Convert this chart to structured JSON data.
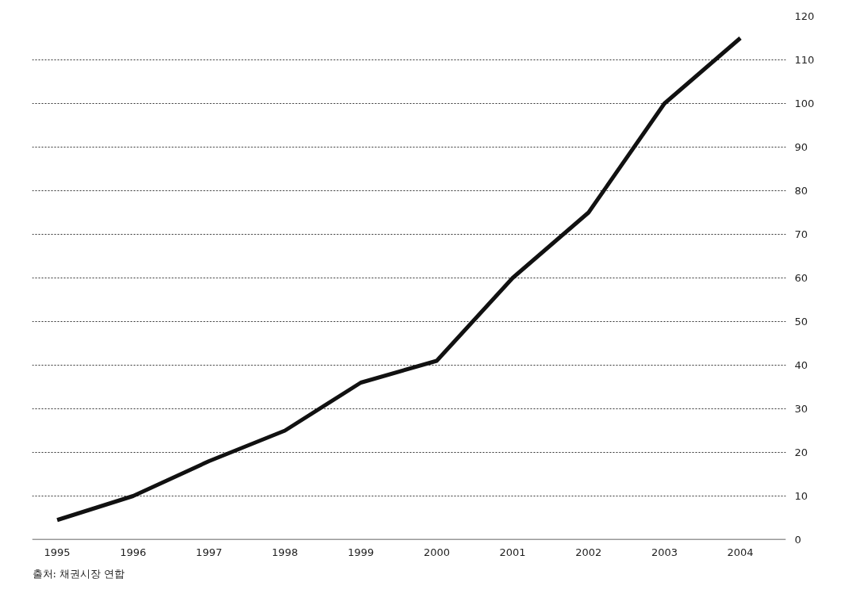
{
  "chart_data": {
    "type": "line",
    "x": [
      1995,
      1996,
      1997,
      1998,
      1999,
      2000,
      2001,
      2002,
      2003,
      2004
    ],
    "series": [
      {
        "color": "#111111",
        "values": [
          4.5,
          10,
          18,
          25,
          36,
          41,
          60,
          75,
          100,
          115
        ]
      }
    ],
    "xlim": [
      1994.67,
      2004.6
    ],
    "xticks": [
      {
        "value": 1995,
        "label": "1995"
      },
      {
        "value": 1996,
        "label": "1996"
      },
      {
        "value": 1997,
        "label": "1997"
      },
      {
        "value": 1998,
        "label": "1998"
      },
      {
        "value": 1999,
        "label": "1999"
      },
      {
        "value": 2000,
        "label": "2000"
      },
      {
        "value": 2001,
        "label": "2001"
      },
      {
        "value": 2002,
        "label": "2002"
      },
      {
        "value": 2003,
        "label": "2003"
      },
      {
        "value": 2004,
        "label": "2004"
      }
    ],
    "ylim": [
      0,
      120
    ],
    "yticks": [
      0,
      10,
      20,
      30,
      40,
      50,
      60,
      70,
      80,
      90,
      100,
      110,
      120
    ],
    "grid": "y",
    "marker": "none",
    "line_style": "solid",
    "annotations": [
      "출처: 채권시장 연합"
    ]
  }
}
